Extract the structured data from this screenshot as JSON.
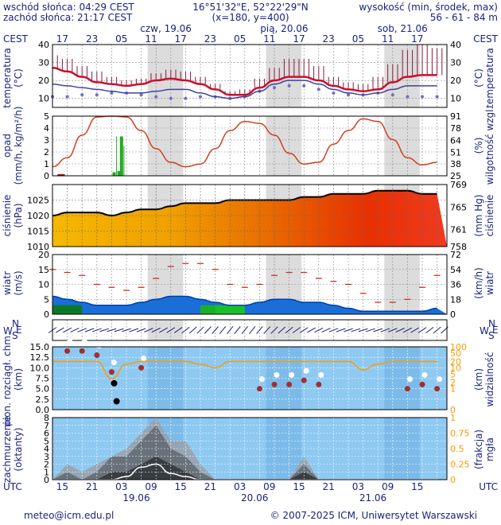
{
  "header": {
    "sunrise": "wschód słońca: 04:29 CEST",
    "sunset": "zachód słońca: 21:17 CEST",
    "coords": "16°51'32\"E, 52°22'29\"N",
    "grid": "(x=180,  y=400)",
    "elev_title": "wysokość (min, środek, max)",
    "elev_values": "56 - 61 - 84 m"
  },
  "axis": {
    "top_tz": "CEST",
    "bottom_tz": "UTC",
    "top_days": [
      "czw, 19.06",
      "pią, 20.06",
      "sob, 21.06"
    ],
    "bottom_days": [
      "19.06",
      "20.06",
      "21.06"
    ],
    "cest_ticks": [
      "17",
      "23",
      "05",
      "11",
      "17",
      "23",
      "05",
      "11",
      "17",
      "23",
      "05",
      "11",
      "17"
    ],
    "utc_ticks": [
      "15",
      "21",
      "03",
      "09",
      "15",
      "21",
      "03",
      "09",
      "15",
      "21",
      "03",
      "09",
      "15"
    ]
  },
  "labels": {
    "temp_left": [
      "temperatura",
      "(°C)"
    ],
    "temp_right": [
      "temperatura",
      "(°C)"
    ],
    "precip_left": [
      "opad",
      "(mm/h, kg/m²/h)"
    ],
    "precip_right": [
      "(%)",
      "wilgotność wzgl."
    ],
    "press_left": [
      "ciśnienie",
      "(hPa)"
    ],
    "press_right": [
      "(mm Hg)",
      "ciśnienie"
    ],
    "wind_left": [
      "wiatr",
      "(m/s)"
    ],
    "wind_right": [
      "(km/h)",
      "wiatr"
    ],
    "dir_left": "W",
    "dir_right": "W",
    "dir_ns": [
      "N",
      "S",
      "E"
    ],
    "cloud_left": [
      "pion. rozciągł. chm.",
      "(km)"
    ],
    "cloud_right": [
      "(km)",
      "widzialność"
    ],
    "cover_left": [
      "zachmurzenie",
      "(oktanty)"
    ],
    "cover_right": [
      "(frakcja)",
      "mgła"
    ]
  },
  "footer": {
    "email": "meteo@icm.edu.pl",
    "copyright": "© 2007-2025 ICM, Uniwersytet Warszawski"
  },
  "colors": {
    "label": "#1a237e",
    "night": "#dcdcdc",
    "temp": "#c8102e",
    "humidity": "#d04020",
    "precip": "#22aa22",
    "wind_gust": "#cc2222",
    "wind_avg": "#0040aa",
    "cloud_sky": "#8ec9f2",
    "visibility": "#ff9900"
  },
  "chart_data": [
    {
      "type": "line",
      "name": "temperature",
      "x_hours_utc": [
        0,
        3,
        6,
        9,
        12,
        15,
        18,
        21,
        24,
        27,
        30,
        33,
        36,
        39,
        42,
        45,
        48,
        51,
        54,
        57,
        60,
        63,
        66,
        69,
        72,
        75,
        78
      ],
      "xtick_hours_utc": [
        "15",
        "21",
        "03",
        "09",
        "15",
        "21",
        "03",
        "09",
        "15",
        "21",
        "03",
        "09",
        "15"
      ],
      "ylim": [
        5,
        40
      ],
      "yticks": [
        10,
        20,
        30,
        40
      ],
      "series": [
        {
          "values": [
            27,
            25,
            22,
            19,
            18,
            17,
            18,
            20,
            21,
            20,
            18,
            15,
            12,
            12,
            16,
            20,
            22,
            22,
            20,
            17,
            15,
            14,
            15,
            19,
            22,
            23,
            23
          ]
        },
        {
          "values": [
            18,
            17,
            16,
            15,
            14,
            13,
            13,
            14,
            15,
            15,
            13,
            11,
            10,
            11,
            14,
            18,
            20,
            20,
            18,
            15,
            13,
            12,
            13,
            15,
            17,
            17,
            17
          ]
        },
        {
          "values": [
            11,
            11,
            12,
            12,
            13,
            13,
            12,
            11,
            10,
            10,
            11,
            11,
            10,
            11,
            14,
            16,
            17,
            17,
            15,
            13,
            12,
            12,
            13,
            12,
            11,
            11,
            11
          ]
        }
      ],
      "range_max": [
        34,
        32,
        28,
        25,
        22,
        20,
        21,
        24,
        26,
        25,
        22,
        18,
        14,
        15,
        21,
        27,
        32,
        32,
        28,
        22,
        19,
        18,
        22,
        29,
        37,
        40,
        38
      ]
    },
    {
      "type": "bar",
      "name": "precipitation_humidity",
      "x_hours_utc": [
        0,
        3,
        6,
        9,
        12,
        15,
        18,
        21,
        24,
        27,
        30,
        33,
        36,
        39,
        42,
        45,
        48,
        51,
        54,
        57,
        60,
        63,
        66,
        69,
        72,
        75,
        78
      ],
      "ylim": [
        0,
        5
      ],
      "yticks": [
        0,
        1,
        2,
        3,
        4,
        5
      ],
      "ylim_right": [
        25,
        91
      ],
      "yticks_right": [
        25,
        38,
        51,
        64,
        78,
        91
      ],
      "humidity": [
        35,
        45,
        70,
        90,
        91,
        90,
        75,
        55,
        40,
        35,
        38,
        55,
        75,
        85,
        83,
        70,
        50,
        38,
        40,
        60,
        75,
        88,
        85,
        65,
        45,
        37,
        40
      ],
      "precip_bars": [
        {
          "hour": 12.5,
          "value": 0.3
        },
        {
          "hour": 13.5,
          "value": 0.4
        },
        {
          "hour": 14.0,
          "value": 3.3
        }
      ],
      "precip_max_marks": [
        {
          "hour": 13.0,
          "value": 3.3
        },
        {
          "hour": 14.5,
          "value": 2.5
        }
      ]
    },
    {
      "type": "area",
      "name": "pressure",
      "x_hours_utc": [
        0,
        3,
        6,
        9,
        12,
        15,
        18,
        21,
        24,
        27,
        30,
        33,
        36,
        39,
        42,
        45,
        48,
        51,
        54,
        57,
        60,
        63,
        66,
        69,
        72,
        75,
        78
      ],
      "ylim": [
        1010,
        1030
      ],
      "yticks": [
        1010,
        1015,
        1020,
        1025
      ],
      "ylim_right": [
        758,
        769
      ],
      "yticks_right": [
        758,
        761,
        765,
        769
      ],
      "values": [
        1020,
        1021,
        1021,
        1021,
        1020,
        1021,
        1022,
        1022,
        1023,
        1024,
        1024,
        1024,
        1025,
        1025,
        1025,
        1025,
        1025,
        1026,
        1026,
        1027,
        1027,
        1027,
        1028,
        1028,
        1028,
        1027,
        1027
      ]
    },
    {
      "type": "line",
      "name": "wind",
      "x_hours_utc": [
        0,
        3,
        6,
        9,
        12,
        15,
        18,
        21,
        24,
        27,
        30,
        33,
        36,
        39,
        42,
        45,
        48,
        51,
        54,
        57,
        60,
        63,
        66,
        69,
        72,
        75,
        78
      ],
      "ylim": [
        0,
        20
      ],
      "yticks": [
        0,
        5,
        10,
        15,
        20
      ],
      "ylim_right": [
        0,
        72
      ],
      "yticks_right": [
        0,
        18,
        36,
        54,
        72
      ],
      "series": [
        {
          "name": "gust",
          "values": [
            15,
            14,
            13,
            10,
            9,
            8,
            9,
            12,
            16,
            17,
            17,
            15,
            10,
            9,
            10,
            13,
            14,
            14,
            12,
            11,
            10,
            7,
            4,
            4,
            5,
            9,
            13
          ]
        },
        {
          "name": "average",
          "values": [
            6,
            5,
            4,
            3,
            3,
            3,
            4,
            5,
            6,
            6,
            5,
            4,
            3,
            3,
            4,
            5,
            5,
            4,
            4,
            3,
            2,
            1,
            1,
            1,
            1,
            1,
            2
          ]
        }
      ]
    },
    {
      "type": "scatter",
      "name": "cloud_vertical_extent_visibility",
      "x_hours_utc": [
        0,
        3,
        6,
        9,
        12,
        15,
        18,
        21,
        24,
        27,
        30,
        33,
        36,
        39,
        42,
        45,
        48,
        51,
        54,
        57,
        60,
        63,
        66,
        69,
        72,
        75,
        78
      ],
      "ylim": [
        0,
        15
      ],
      "yticks": [
        0,
        2.5,
        5,
        7.5,
        10,
        12.5,
        15
      ],
      "ylim_right": [
        0,
        100
      ],
      "yticks_right": [
        0,
        1,
        2,
        5,
        10,
        20,
        50,
        100
      ],
      "visibility_km": [
        20,
        20,
        20,
        20,
        3,
        15,
        20,
        20,
        20,
        20,
        15,
        10,
        20,
        20,
        20,
        20,
        20,
        20,
        20,
        20,
        20,
        8,
        15,
        20,
        20,
        20,
        20
      ],
      "cloud_top_km": [
        null,
        14,
        14,
        13,
        9,
        null,
        10,
        null,
        null,
        null,
        null,
        null,
        null,
        null,
        5,
        6,
        6,
        7,
        6,
        null,
        null,
        null,
        null,
        null,
        5,
        6,
        5
      ]
    },
    {
      "type": "area",
      "name": "cloud_cover_fog",
      "x_hours_utc": [
        0,
        3,
        6,
        9,
        12,
        15,
        18,
        21,
        24,
        27,
        30,
        33,
        36,
        39,
        42,
        45,
        48,
        51,
        54,
        57,
        60,
        63,
        66,
        69,
        72,
        75,
        78
      ],
      "ylim": [
        0,
        8
      ],
      "yticks": [
        0,
        1,
        2,
        3,
        4,
        5,
        6,
        7,
        8
      ],
      "ylim_right": [
        0,
        1
      ],
      "yticks_right": [
        0,
        0.25,
        0.5,
        0.75,
        1
      ],
      "high": [
        0,
        2,
        1,
        2,
        3,
        4,
        6,
        8,
        5,
        5,
        2,
        0,
        0,
        0,
        0,
        0,
        0,
        3,
        0,
        0,
        0,
        0,
        0,
        0,
        0,
        0,
        0
      ],
      "mid": [
        0,
        1,
        0,
        1,
        3,
        3,
        5,
        7,
        4,
        3,
        1,
        0,
        0,
        0,
        0,
        0,
        0,
        2,
        0,
        0,
        0,
        0,
        0,
        0,
        0,
        0,
        0
      ],
      "low": [
        0,
        0,
        0,
        0,
        1,
        1,
        2,
        3,
        2,
        1,
        0,
        0,
        0,
        0,
        0,
        0,
        0,
        1,
        0,
        0,
        0,
        0,
        0,
        0,
        0,
        0,
        0
      ],
      "fog": [
        0,
        0,
        0,
        0,
        0,
        0.05,
        0.2,
        0.25,
        0.1,
        0.05,
        0,
        0,
        0,
        0,
        0,
        0,
        0,
        0,
        0,
        0,
        0,
        0,
        0,
        0,
        0,
        0,
        0
      ]
    }
  ]
}
